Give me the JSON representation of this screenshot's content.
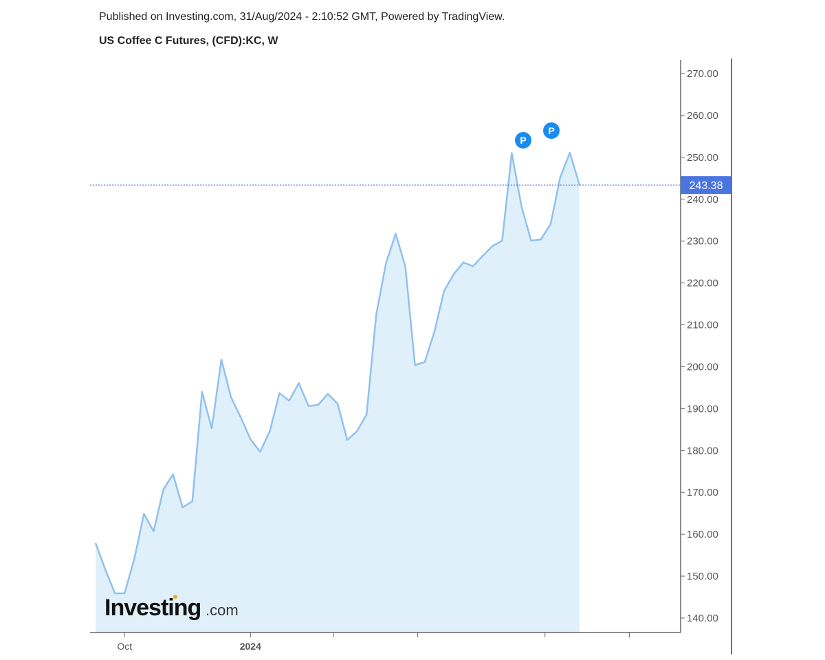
{
  "header": {
    "published": "Published on Investing.com, 31/Aug/2024 - 2:10:52 GMT, Powered by TradingView.",
    "title": "US Coffee C Futures, (CFD):KC, W"
  },
  "logo": {
    "text": "Investing",
    "suffix": ".com"
  },
  "colors": {
    "line": "#8fc1ef",
    "fill": "#e0f0fa",
    "price_label": "#4a74e0",
    "marker": "#1a8cf0",
    "price_line": "#3a5ee8"
  },
  "chart_data": {
    "type": "area",
    "title": "US Coffee C Futures, (CFD):KC, W",
    "xlabel": "",
    "ylabel": "",
    "ylim": [
      137,
      272
    ],
    "grid": false,
    "y_ticks": [
      "140.00",
      "150.00",
      "160.00",
      "170.00",
      "180.00",
      "190.00",
      "200.00",
      "210.00",
      "220.00",
      "230.00",
      "240.00",
      "250.00",
      "260.00",
      "270.00"
    ],
    "x_tick_labels": [
      {
        "label": "Oct",
        "date": "2023-10-02"
      },
      {
        "label": "2024",
        "date": "2024-01-01"
      },
      {
        "label": "",
        "date": "2024-03-01"
      },
      {
        "label": "",
        "date": "2024-05-01"
      },
      {
        "label": "",
        "date": "2024-08-01"
      },
      {
        "label": "",
        "date": "2024-10-01"
      }
    ],
    "x_start": "2023-09-11",
    "frequency": "weekly",
    "values": [
      157.9,
      151.6,
      145.9,
      145.9,
      154.1,
      164.9,
      160.7,
      170.7,
      174.3,
      166.4,
      167.9,
      194.0,
      185.3,
      201.7,
      192.7,
      187.9,
      182.7,
      179.7,
      184.6,
      193.7,
      191.9,
      196.1,
      190.6,
      190.9,
      193.5,
      191.2,
      182.5,
      184.6,
      188.6,
      212.5,
      224.7,
      231.8,
      223.9,
      200.4,
      201.1,
      208.3,
      218.1,
      222.1,
      224.9,
      224.0,
      226.5,
      228.8,
      230.1,
      251.0,
      238.3,
      230.1,
      230.4,
      234.0,
      245.2,
      251.1,
      243.38
    ],
    "last_price": "243.38",
    "markers": [
      {
        "label": "P",
        "index": 44
      },
      {
        "label": "P",
        "index": 47
      }
    ]
  }
}
